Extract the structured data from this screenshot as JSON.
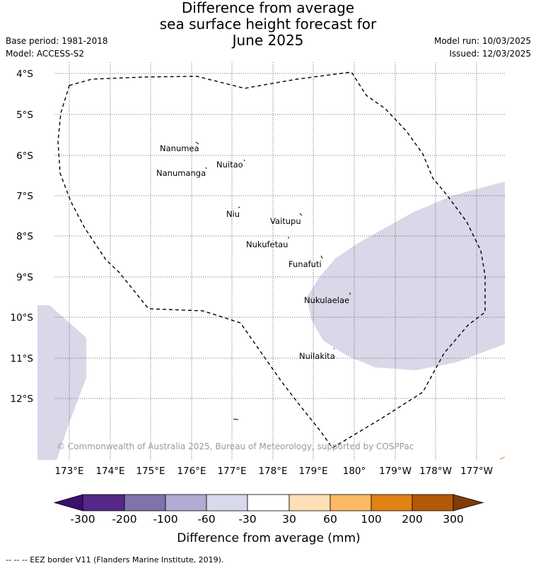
{
  "title": {
    "line1": "Difference from average",
    "line2": "sea surface height forecast for",
    "line3": "June 2025"
  },
  "meta": {
    "base_period": "Base period: 1981-2018",
    "model": "Model: ACCESS-S2",
    "model_run": "Model run: 10/03/2025",
    "issued": "Issued: 12/03/2025"
  },
  "map": {
    "lat_labels": [
      "4°S",
      "5°S",
      "6°S",
      "7°S",
      "8°S",
      "9°S",
      "10°S",
      "11°S",
      "12°S"
    ],
    "lon_labels": [
      "173°E",
      "174°E",
      "175°E",
      "176°E",
      "177°E",
      "178°E",
      "179°E",
      "180°",
      "179°W",
      "178°W",
      "177°W"
    ],
    "islands": [
      {
        "name": "Nanumea"
      },
      {
        "name": "Nuitao"
      },
      {
        "name": "Nanumanga"
      },
      {
        "name": "Niu"
      },
      {
        "name": "Vaitupu"
      },
      {
        "name": "Nukufetau"
      },
      {
        "name": "Funafuti"
      },
      {
        "name": "Nukulaelae"
      },
      {
        "name": "Nuilakita"
      }
    ],
    "copyright": "© Commonwealth of Australia 2025, Bureau of Meteorology, supported by COSPPac",
    "anomaly_fill_color": "#d8d8e9",
    "eez_line_color": "#000000"
  },
  "colorbar": {
    "ticks": [
      "-300",
      "-200",
      "-100",
      "-60",
      "-30",
      "30",
      "60",
      "100",
      "200",
      "300"
    ],
    "colors": [
      "#3b0f6f",
      "#542788",
      "#8073ac",
      "#b2abd2",
      "#d8daeb",
      "#ffffff",
      "#fee0b6",
      "#fdb863",
      "#e08214",
      "#b35806",
      "#7f3b08"
    ],
    "label": "Difference from average (mm)"
  },
  "footer": "--  --  -- EEZ border V11 (Flanders Marine Institute, 2019)."
}
